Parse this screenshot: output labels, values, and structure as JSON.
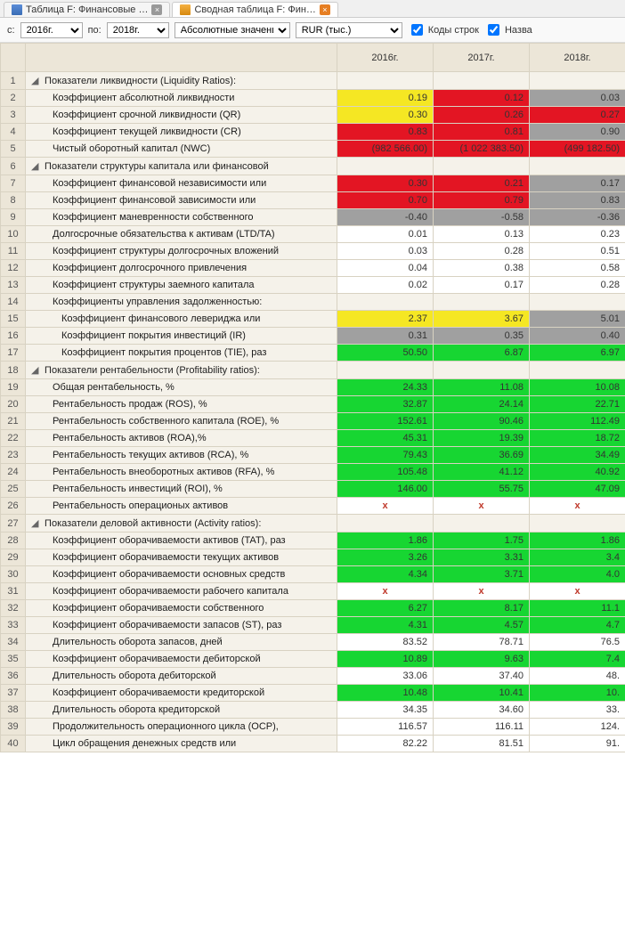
{
  "tabs": [
    {
      "label": "Таблица F: Финансовые …",
      "active": false,
      "icon": "blue"
    },
    {
      "label": "Сводная таблица F: Фин…",
      "active": true,
      "icon": "orange"
    }
  ],
  "toolbar": {
    "from_label": "с:",
    "from_value": "2016г.",
    "to_label": "по:",
    "to_value": "2018г.",
    "mode_value": "Абсолютные значения",
    "currency_value": "RUR  (тыс.)",
    "chk_codes_label": "Коды строк",
    "chk_names_label": "Назва"
  },
  "columns": [
    "2016г.",
    "2017г.",
    "2018г."
  ],
  "colors": {
    "yellow": "#f5e723",
    "red": "#e31523",
    "green": "#17d632",
    "gray": "#a0a0a0",
    "beige": "#f5f2ea",
    "header": "#ece6d8",
    "border": "#d8d2c2",
    "white": "#ffffff",
    "err": "#c0392b"
  },
  "rows": [
    {
      "num": 1,
      "type": "group",
      "label": "Показатели ликвидности (Liquidity Ratios):",
      "cells": [
        null,
        null,
        null
      ]
    },
    {
      "num": 2,
      "type": "leaf",
      "label": "Коэффициент абсолютной ликвидности",
      "cells": [
        {
          "v": "0.19",
          "bg": "yellow"
        },
        {
          "v": "0.12",
          "bg": "red"
        },
        {
          "v": "0.03",
          "bg": "gray"
        }
      ]
    },
    {
      "num": 3,
      "type": "leaf",
      "label": "Коэффициент срочной ликвидности (QR)",
      "cells": [
        {
          "v": "0.30",
          "bg": "yellow"
        },
        {
          "v": "0.26",
          "bg": "red"
        },
        {
          "v": "0.27",
          "bg": "red"
        }
      ]
    },
    {
      "num": 4,
      "type": "leaf",
      "label": "Коэффициент текущей ликвидности (CR)",
      "cells": [
        {
          "v": "0.83",
          "bg": "red"
        },
        {
          "v": "0.81",
          "bg": "red"
        },
        {
          "v": "0.90",
          "bg": "gray"
        }
      ]
    },
    {
      "num": 5,
      "type": "leaf",
      "label": "Чистый оборотный капитал (NWC)",
      "cells": [
        {
          "v": "(982 566.00)",
          "bg": "red"
        },
        {
          "v": "(1 022 383.50)",
          "bg": "red"
        },
        {
          "v": "(499 182.50)",
          "bg": "red"
        }
      ]
    },
    {
      "num": 6,
      "type": "group",
      "label": "Показатели структуры капитала или финансовой",
      "cells": [
        null,
        null,
        null
      ]
    },
    {
      "num": 7,
      "type": "leaf",
      "label": "Коэффициент финансовой независимости или",
      "cells": [
        {
          "v": "0.30",
          "bg": "red"
        },
        {
          "v": "0.21",
          "bg": "red"
        },
        {
          "v": "0.17",
          "bg": "gray"
        }
      ]
    },
    {
      "num": 8,
      "type": "leaf",
      "label": "Коэффициент финансовой зависимости или",
      "cells": [
        {
          "v": "0.70",
          "bg": "red"
        },
        {
          "v": "0.79",
          "bg": "red"
        },
        {
          "v": "0.83",
          "bg": "gray"
        }
      ]
    },
    {
      "num": 9,
      "type": "leaf",
      "label": "Коэффициент маневренности собственного",
      "cells": [
        {
          "v": "-0.40",
          "bg": "gray"
        },
        {
          "v": "-0.58",
          "bg": "gray"
        },
        {
          "v": "-0.36",
          "bg": "gray"
        }
      ]
    },
    {
      "num": 10,
      "type": "leaf",
      "label": "Долгосрочные обязательства к активам (LTD/TA)",
      "cells": [
        {
          "v": "0.01"
        },
        {
          "v": "0.13"
        },
        {
          "v": "0.23"
        }
      ]
    },
    {
      "num": 11,
      "type": "leaf",
      "label": "Коэффициент структуры долгосрочных вложений",
      "cells": [
        {
          "v": "0.03"
        },
        {
          "v": "0.28"
        },
        {
          "v": "0.51"
        }
      ]
    },
    {
      "num": 12,
      "type": "leaf",
      "label": "Коэффициент долгосрочного привлечения",
      "cells": [
        {
          "v": "0.04"
        },
        {
          "v": "0.38"
        },
        {
          "v": "0.58"
        }
      ]
    },
    {
      "num": 13,
      "type": "leaf",
      "label": "Коэффициент структуры заемного капитала",
      "cells": [
        {
          "v": "0.02"
        },
        {
          "v": "0.17"
        },
        {
          "v": "0.28"
        }
      ]
    },
    {
      "num": 14,
      "type": "leaf",
      "label": "Коэффициенты управления задолженностью:",
      "cells": [
        null,
        null,
        null
      ]
    },
    {
      "num": 15,
      "type": "leaf2",
      "label": "Коэффициент финансового левериджа или",
      "cells": [
        {
          "v": "2.37",
          "bg": "yellow"
        },
        {
          "v": "3.67",
          "bg": "yellow"
        },
        {
          "v": "5.01",
          "bg": "gray"
        }
      ]
    },
    {
      "num": 16,
      "type": "leaf2",
      "label": "Коэффициент покрытия инвестиций (IR)",
      "cells": [
        {
          "v": "0.31",
          "bg": "gray"
        },
        {
          "v": "0.35",
          "bg": "gray"
        },
        {
          "v": "0.40",
          "bg": "gray"
        }
      ]
    },
    {
      "num": 17,
      "type": "leaf2",
      "label": "Коэффициент покрытия процентов (TIE), раз",
      "cells": [
        {
          "v": "50.50",
          "bg": "green"
        },
        {
          "v": "6.87",
          "bg": "green"
        },
        {
          "v": "6.97",
          "bg": "green"
        }
      ]
    },
    {
      "num": 18,
      "type": "group",
      "label": "Показатели рентабельности (Profitability ratios):",
      "cells": [
        null,
        null,
        null
      ]
    },
    {
      "num": 19,
      "type": "leaf",
      "label": "Общая рентабельность, %",
      "cells": [
        {
          "v": "24.33",
          "bg": "green"
        },
        {
          "v": "11.08",
          "bg": "green"
        },
        {
          "v": "10.08",
          "bg": "green"
        }
      ]
    },
    {
      "num": 20,
      "type": "leaf",
      "label": "Рентабельность продаж (ROS), %",
      "cells": [
        {
          "v": "32.87",
          "bg": "green"
        },
        {
          "v": "24.14",
          "bg": "green"
        },
        {
          "v": "22.71",
          "bg": "green"
        }
      ]
    },
    {
      "num": 21,
      "type": "leaf",
      "label": "Рентабельность собственного капитала (ROE), %",
      "cells": [
        {
          "v": "152.61",
          "bg": "green"
        },
        {
          "v": "90.46",
          "bg": "green"
        },
        {
          "v": "112.49",
          "bg": "green"
        }
      ]
    },
    {
      "num": 22,
      "type": "leaf",
      "label": "Рентабельность активов (ROA),%",
      "cells": [
        {
          "v": "45.31",
          "bg": "green"
        },
        {
          "v": "19.39",
          "bg": "green"
        },
        {
          "v": "18.72",
          "bg": "green"
        }
      ]
    },
    {
      "num": 23,
      "type": "leaf",
      "label": "Рентабельность текущих активов (RCA), %",
      "cells": [
        {
          "v": "79.43",
          "bg": "green"
        },
        {
          "v": "36.69",
          "bg": "green"
        },
        {
          "v": "34.49",
          "bg": "green"
        }
      ]
    },
    {
      "num": 24,
      "type": "leaf",
      "label": "Рентабельность внеоборотных активов (RFA), %",
      "cells": [
        {
          "v": "105.48",
          "bg": "green"
        },
        {
          "v": "41.12",
          "bg": "green"
        },
        {
          "v": "40.92",
          "bg": "green"
        }
      ]
    },
    {
      "num": 25,
      "type": "leaf",
      "label": "Рентабельность инвестиций (ROI), %",
      "cells": [
        {
          "v": "146.00",
          "bg": "green"
        },
        {
          "v": "55.75",
          "bg": "green"
        },
        {
          "v": "47.09",
          "bg": "green"
        }
      ]
    },
    {
      "num": 26,
      "type": "leaf",
      "label": "Рентабельность операционых активов",
      "cells": [
        {
          "v": "x",
          "err": true
        },
        {
          "v": "x",
          "err": true
        },
        {
          "v": "x",
          "err": true
        }
      ]
    },
    {
      "num": 27,
      "type": "group",
      "label": "Показатели деловой активности (Activity ratios):",
      "cells": [
        null,
        null,
        null
      ]
    },
    {
      "num": 28,
      "type": "leaf",
      "label": "Коэффициент оборачиваемости активов (TAT), раз",
      "cells": [
        {
          "v": "1.86",
          "bg": "green"
        },
        {
          "v": "1.75",
          "bg": "green"
        },
        {
          "v": "1.86",
          "bg": "green"
        }
      ]
    },
    {
      "num": 29,
      "type": "leaf",
      "label": "Коэффициент оборачиваемости текущих активов",
      "cells": [
        {
          "v": "3.26",
          "bg": "green"
        },
        {
          "v": "3.31",
          "bg": "green"
        },
        {
          "v": "3.4",
          "bg": "green"
        }
      ]
    },
    {
      "num": 30,
      "type": "leaf",
      "label": "Коэффициент оборачиваемости основных средств",
      "cells": [
        {
          "v": "4.34",
          "bg": "green"
        },
        {
          "v": "3.71",
          "bg": "green"
        },
        {
          "v": "4.0",
          "bg": "green"
        }
      ]
    },
    {
      "num": 31,
      "type": "leaf",
      "label": "Коэффициент оборачиваемости рабочего капитала",
      "cells": [
        {
          "v": "x",
          "err": true
        },
        {
          "v": "x",
          "err": true
        },
        {
          "v": "x",
          "err": true
        }
      ]
    },
    {
      "num": 32,
      "type": "leaf",
      "label": "Коэффициент оборачиваемости собственного",
      "cells": [
        {
          "v": "6.27",
          "bg": "green"
        },
        {
          "v": "8.17",
          "bg": "green"
        },
        {
          "v": "11.1",
          "bg": "green"
        }
      ]
    },
    {
      "num": 33,
      "type": "leaf",
      "label": "Коэффициент оборачиваемости запасов (ST), раз",
      "cells": [
        {
          "v": "4.31",
          "bg": "green"
        },
        {
          "v": "4.57",
          "bg": "green"
        },
        {
          "v": "4.7",
          "bg": "green"
        }
      ]
    },
    {
      "num": 34,
      "type": "leaf",
      "label": "Длительность оборота запасов, дней",
      "cells": [
        {
          "v": "83.52"
        },
        {
          "v": "78.71"
        },
        {
          "v": "76.5"
        }
      ]
    },
    {
      "num": 35,
      "type": "leaf",
      "label": "Коэффициент оборачиваемости дебиторской",
      "cells": [
        {
          "v": "10.89",
          "bg": "green"
        },
        {
          "v": "9.63",
          "bg": "green"
        },
        {
          "v": "7.4",
          "bg": "green"
        }
      ]
    },
    {
      "num": 36,
      "type": "leaf",
      "label": "Длительность оборота дебиторской",
      "cells": [
        {
          "v": "33.06"
        },
        {
          "v": "37.40"
        },
        {
          "v": "48."
        }
      ]
    },
    {
      "num": 37,
      "type": "leaf",
      "label": "Коэффициент оборачиваемости кредиторской",
      "cells": [
        {
          "v": "10.48",
          "bg": "green"
        },
        {
          "v": "10.41",
          "bg": "green"
        },
        {
          "v": "10.",
          "bg": "green"
        }
      ]
    },
    {
      "num": 38,
      "type": "leaf",
      "label": "Длительность оборота кредиторской",
      "cells": [
        {
          "v": "34.35"
        },
        {
          "v": "34.60"
        },
        {
          "v": "33."
        }
      ]
    },
    {
      "num": 39,
      "type": "leaf",
      "label": "Продолжительность операционного цикла (OCP),",
      "cells": [
        {
          "v": "116.57"
        },
        {
          "v": "116.11"
        },
        {
          "v": "124."
        }
      ]
    },
    {
      "num": 40,
      "type": "leaf",
      "label": "Цикл обращения денежных средств или",
      "cells": [
        {
          "v": "82.22"
        },
        {
          "v": "81.51"
        },
        {
          "v": "91."
        }
      ]
    }
  ]
}
